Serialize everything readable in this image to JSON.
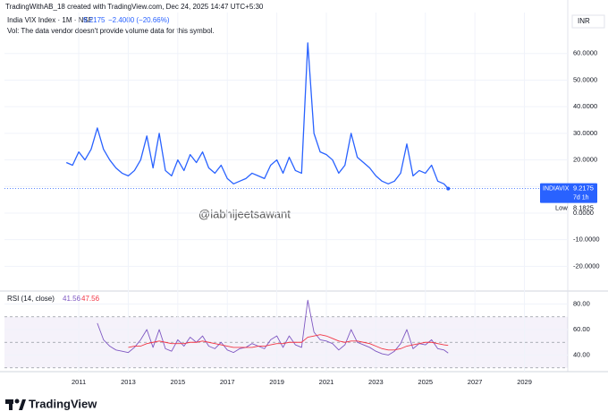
{
  "header": {
    "attribution": "TradingWithAB_18 created with TradingView.com, Dec 24, 2025 14:47 UTC+5:30",
    "symbol": "India VIX Index · 1M · NSE",
    "change": "−2.4000 (−20.66%)",
    "volume_note": "Vol: The data vendor doesn't provide volume data for this symbol.",
    "currency": "INR",
    "watermark": "@iabhijeetsawant",
    "logo": "TradingView"
  },
  "chart_data": [
    {
      "type": "line",
      "x": [
        2010.5,
        2010.75,
        2011,
        2011.25,
        2011.5,
        2011.75,
        2012,
        2012.25,
        2012.5,
        2012.75,
        2013,
        2013.25,
        2013.5,
        2013.75,
        2014,
        2014.25,
        2014.5,
        2014.75,
        2015,
        2015.25,
        2015.5,
        2015.75,
        2016,
        2016.25,
        2016.5,
        2016.75,
        2017,
        2017.25,
        2017.5,
        2017.75,
        2018,
        2018.25,
        2018.5,
        2018.75,
        2019,
        2019.25,
        2019.5,
        2019.75,
        2020,
        2020.25,
        2020.5,
        2020.75,
        2021,
        2021.25,
        2021.5,
        2021.75,
        2022,
        2022.25,
        2022.5,
        2022.75,
        2023,
        2023.25,
        2023.5,
        2023.75,
        2024,
        2024.25,
        2024.5,
        2024.75,
        2025,
        2025.25,
        2025.5,
        2025.75,
        2025.92
      ],
      "series": [
        {
          "name": "INDIAVIX",
          "color": "#2962ff",
          "values": [
            19,
            18,
            23,
            20,
            24,
            32,
            24,
            20,
            17,
            15,
            14,
            16,
            20,
            29,
            17,
            30,
            16,
            14,
            20,
            16,
            22,
            19,
            23,
            17,
            15,
            18,
            13,
            11,
            12,
            13,
            15,
            14,
            13,
            18,
            20,
            15,
            21,
            16,
            15,
            64,
            30,
            23,
            22,
            20,
            15,
            18,
            30,
            21,
            19,
            17,
            14,
            12,
            11,
            12,
            15,
            26,
            14,
            16,
            15,
            18,
            12,
            11,
            9.2175
          ]
        }
      ],
      "countdown": "7d 1h",
      "low_label": "Low",
      "low": 8.1825,
      "xlim": [
        2008,
        2030.75
      ],
      "xticks": [
        2011,
        2013,
        2015,
        2017,
        2019,
        2021,
        2023,
        2025,
        2027,
        2029
      ],
      "ylim": [
        -29.3,
        75.4
      ],
      "yticks": [
        {
          "value": 60,
          "label": "60.0000"
        },
        {
          "value": 50,
          "label": "50.0000"
        },
        {
          "value": 40,
          "label": "40.0000"
        },
        {
          "value": 30,
          "label": "30.0000"
        },
        {
          "value": 20,
          "label": "20.0000"
        },
        {
          "value": 10,
          "label": "10.0000"
        },
        {
          "value": 0,
          "label": "0.0000"
        },
        {
          "value": -10,
          "label": "-10.0000"
        },
        {
          "value": -20,
          "label": "-20.0000"
        }
      ],
      "grid": true
    },
    {
      "type": "line",
      "title": "RSI (14, close)",
      "x": [
        2010.5,
        2010.75,
        2011,
        2011.25,
        2011.5,
        2011.75,
        2012,
        2012.25,
        2012.5,
        2012.75,
        2013,
        2013.25,
        2013.5,
        2013.75,
        2014,
        2014.25,
        2014.5,
        2014.75,
        2015,
        2015.25,
        2015.5,
        2015.75,
        2016,
        2016.25,
        2016.5,
        2016.75,
        2017,
        2017.25,
        2017.5,
        2017.75,
        2018,
        2018.25,
        2018.5,
        2018.75,
        2019,
        2019.25,
        2019.5,
        2019.75,
        2020,
        2020.25,
        2020.5,
        2020.75,
        2021,
        2021.25,
        2021.5,
        2021.75,
        2022,
        2022.25,
        2022.5,
        2022.75,
        2023,
        2023.25,
        2023.5,
        2023.75,
        2024,
        2024.25,
        2024.5,
        2024.75,
        2025,
        2025.25,
        2025.5,
        2025.75,
        2025.92
      ],
      "series": [
        {
          "color": "#7e57c2",
          "values": [
            null,
            null,
            null,
            null,
            null,
            65,
            52,
            47,
            44,
            43,
            42,
            46,
            52,
            60,
            46,
            60,
            45,
            43,
            52,
            47,
            54,
            50,
            55,
            47,
            45,
            50,
            44,
            42,
            45,
            46,
            49,
            47,
            45,
            52,
            55,
            46,
            55,
            48,
            46,
            83,
            58,
            52,
            51,
            49,
            44,
            48,
            60,
            50,
            48,
            46,
            43,
            41,
            40,
            43,
            49,
            60,
            45,
            49,
            48,
            52,
            45,
            44,
            41.56
          ]
        },
        {
          "color": "#f23645",
          "values": [
            null,
            null,
            null,
            null,
            null,
            null,
            null,
            null,
            null,
            null,
            46,
            47,
            47,
            49,
            50,
            51,
            50,
            49,
            49,
            49,
            50,
            50,
            51,
            50,
            49,
            48,
            47,
            46,
            46,
            46,
            46,
            47,
            47,
            48,
            49,
            49,
            50,
            50,
            50,
            54,
            55,
            56,
            55,
            53,
            51,
            50,
            51,
            51,
            50,
            49,
            47,
            45,
            44,
            44,
            45,
            47,
            48,
            49,
            50,
            50,
            49,
            48,
            47.56
          ]
        }
      ],
      "bands": [
        30,
        50,
        70
      ],
      "xlim": [
        2008,
        2030.75
      ],
      "xticks": [
        2011,
        2013,
        2015,
        2017,
        2019,
        2021,
        2023,
        2025,
        2027,
        2029
      ],
      "ylim": [
        27,
        90.2
      ],
      "yticks": [
        {
          "value": 80,
          "label": "80.00"
        },
        {
          "value": 60,
          "label": "60.00"
        },
        {
          "value": 40,
          "label": "40.00"
        }
      ],
      "grid": true
    }
  ]
}
